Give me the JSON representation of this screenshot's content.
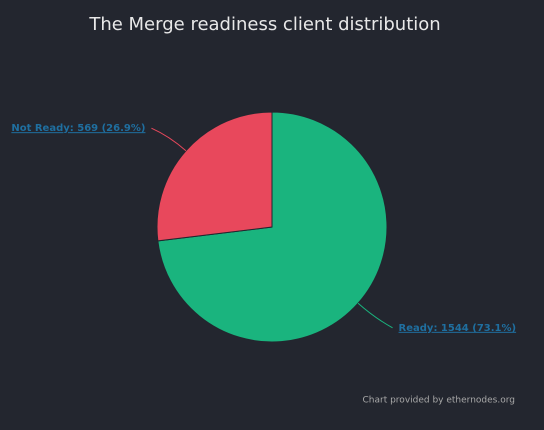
{
  "chart_data": {
    "type": "pie",
    "title": "The Merge readiness client distribution",
    "categories": [
      "Ready",
      "Not Ready"
    ],
    "values": [
      1544,
      569
    ],
    "value_labels": [
      "Ready: 1544 (73.1%)",
      "Not Ready: 569 (26.9%)"
    ],
    "colors": [
      "#1ab47e",
      "#e8485c"
    ],
    "credit": "Chart provided by ethernodes.org"
  }
}
